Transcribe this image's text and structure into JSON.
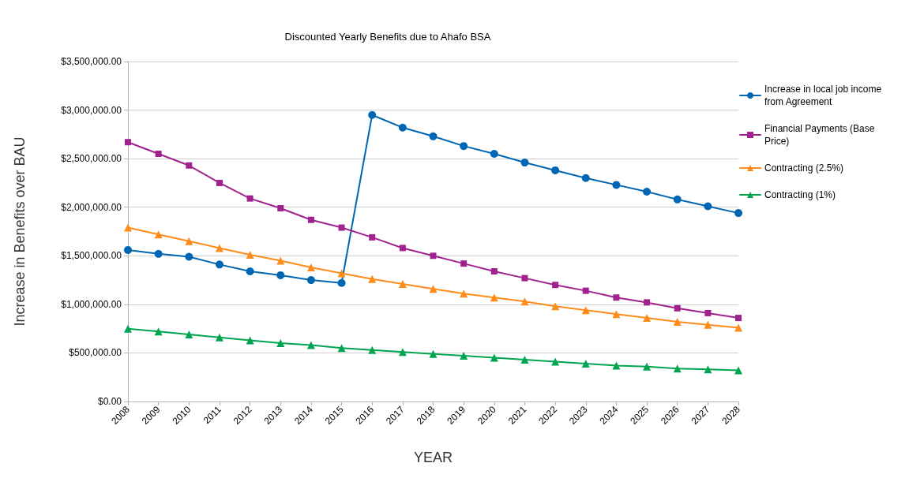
{
  "chart_data": {
    "type": "line",
    "title": "Discounted Yearly Benefits due to Ahafo BSA",
    "xlabel": "YEAR",
    "ylabel": "Increase in Benefits over BAU",
    "categories": [
      "2008",
      "2009",
      "2010",
      "2011",
      "2012",
      "2013",
      "2014",
      "2015",
      "2016",
      "2017",
      "2018",
      "2019",
      "2020",
      "2021",
      "2022",
      "2023",
      "2024",
      "2025",
      "2026",
      "2027",
      "2028"
    ],
    "series": [
      {
        "name": "Increase in local job income from Agreement",
        "color": "#0066b3",
        "marker": "circle",
        "values": [
          1560000,
          1520000,
          1490000,
          1410000,
          1340000,
          1300000,
          1250000,
          1220000,
          2950000,
          2820000,
          2730000,
          2630000,
          2550000,
          2460000,
          2380000,
          2300000,
          2230000,
          2160000,
          2080000,
          2010000,
          1940000
        ]
      },
      {
        "name": "Financial Payments (Base Price)",
        "color": "#a1228f",
        "marker": "square",
        "values": [
          2670000,
          2550000,
          2430000,
          2250000,
          2090000,
          1990000,
          1870000,
          1790000,
          1690000,
          1580000,
          1500000,
          1420000,
          1340000,
          1270000,
          1200000,
          1140000,
          1070000,
          1020000,
          960000,
          910000,
          860000
        ]
      },
      {
        "name": "Contracting (2.5%)",
        "color": "#ff8c1a",
        "marker": "triangle",
        "values": [
          1790000,
          1720000,
          1650000,
          1580000,
          1510000,
          1450000,
          1380000,
          1320000,
          1260000,
          1210000,
          1160000,
          1110000,
          1070000,
          1030000,
          980000,
          940000,
          900000,
          860000,
          820000,
          790000,
          760000
        ]
      },
      {
        "name": "Contracting (1%)",
        "color": "#00a550",
        "marker": "triangle",
        "values": [
          750000,
          720000,
          690000,
          660000,
          630000,
          600000,
          580000,
          550000,
          530000,
          510000,
          490000,
          470000,
          450000,
          430000,
          410000,
          390000,
          370000,
          360000,
          340000,
          330000,
          320000
        ]
      }
    ],
    "ylim": [
      0,
      3500000
    ],
    "yticks": [
      {
        "value": 0,
        "label": "$0.00"
      },
      {
        "value": 500000,
        "label": "$500,000.00"
      },
      {
        "value": 1000000,
        "label": "$1,000,000.00"
      },
      {
        "value": 1500000,
        "label": "$1,500,000.00"
      },
      {
        "value": 2000000,
        "label": "$2,000,000.00"
      },
      {
        "value": 2500000,
        "label": "$2,500,000.00"
      },
      {
        "value": 3000000,
        "label": "$3,000,000.00"
      },
      {
        "value": 3500000,
        "label": "$3,500,000.00"
      }
    ],
    "grid": "y",
    "legend": "right",
    "line_style": "solid"
  }
}
